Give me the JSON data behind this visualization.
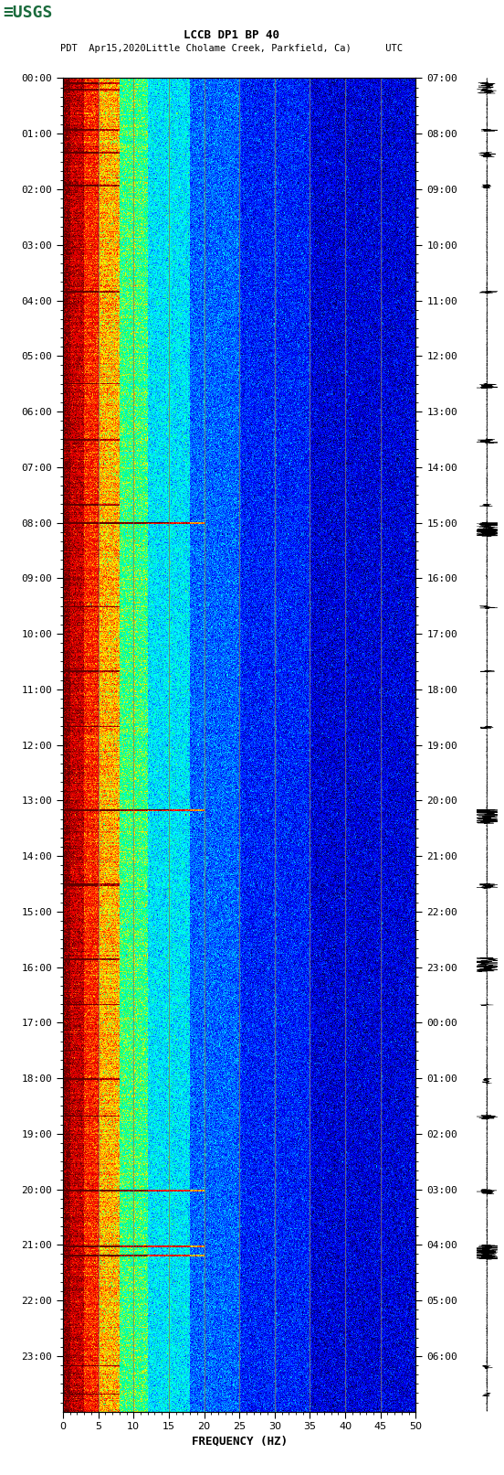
{
  "title_line1": "LCCB DP1 BP 40",
  "title_line2": "PDT  Apr15,2020Little Cholame Creek, Parkfield, Ca)      UTC",
  "xlabel": "FREQUENCY (HZ)",
  "left_times": [
    "00:00",
    "01:00",
    "02:00",
    "03:00",
    "04:00",
    "05:00",
    "06:00",
    "07:00",
    "08:00",
    "09:00",
    "10:00",
    "11:00",
    "12:00",
    "13:00",
    "14:00",
    "15:00",
    "16:00",
    "17:00",
    "18:00",
    "19:00",
    "20:00",
    "21:00",
    "22:00",
    "23:00"
  ],
  "right_times": [
    "07:00",
    "08:00",
    "09:00",
    "10:00",
    "11:00",
    "12:00",
    "13:00",
    "14:00",
    "15:00",
    "16:00",
    "17:00",
    "18:00",
    "19:00",
    "20:00",
    "21:00",
    "22:00",
    "23:00",
    "00:00",
    "01:00",
    "02:00",
    "03:00",
    "04:00",
    "05:00",
    "06:00"
  ],
  "freq_min": 0,
  "freq_max": 50,
  "freq_ticks": [
    0,
    5,
    10,
    15,
    20,
    25,
    30,
    35,
    40,
    45,
    50
  ],
  "bg_color": "#ffffff",
  "usgs_green": "#1a6b3c",
  "num_time_steps": 1440,
  "num_freq_bins": 500,
  "colormap_nodes": [
    [
      0.0,
      "#000040"
    ],
    [
      0.05,
      "#00008B"
    ],
    [
      0.15,
      "#0000FF"
    ],
    [
      0.28,
      "#0080FF"
    ],
    [
      0.4,
      "#00FFFF"
    ],
    [
      0.52,
      "#00FF80"
    ],
    [
      0.62,
      "#FFFF00"
    ],
    [
      0.72,
      "#FF8000"
    ],
    [
      0.82,
      "#FF0000"
    ],
    [
      0.9,
      "#CC0000"
    ],
    [
      1.0,
      "#600000"
    ]
  ],
  "event_rows_red": [
    5,
    12,
    55,
    80,
    115,
    230,
    330,
    390,
    460,
    480,
    570,
    640,
    700,
    790,
    870,
    950,
    1000,
    1080,
    1120,
    1200,
    1390,
    1420
  ],
  "event_rows_yellow": [
    480,
    790,
    1200,
    1260,
    1270
  ],
  "event_rows_white": [
    480,
    790
  ],
  "grid_vlines_hz": [
    5,
    10,
    15,
    20,
    25,
    30,
    35,
    40,
    45
  ],
  "grid_color": "#8B7355",
  "vmin": 0.0,
  "vmax": 1.0
}
